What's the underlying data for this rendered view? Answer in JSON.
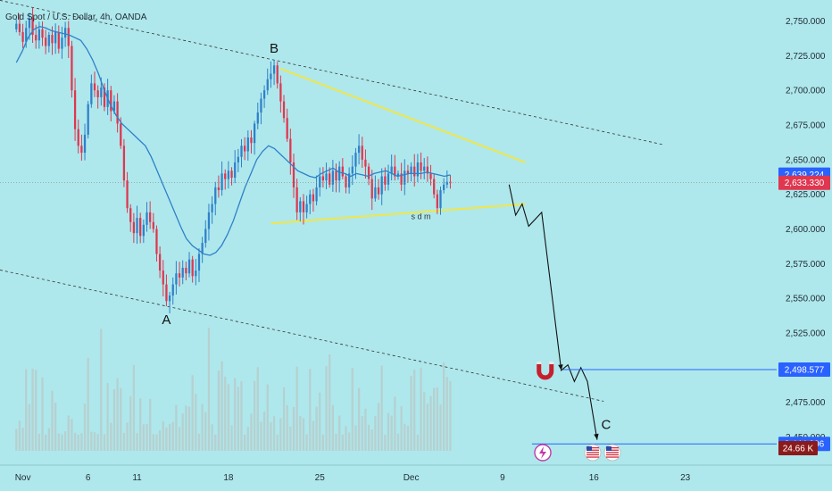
{
  "symbol_title": "Gold Spot / U.S. Dollar, 4h, OANDA",
  "colors": {
    "background": "#aee8ec",
    "up": "#2f80c9",
    "down": "#e0364f",
    "ma": "#2f80c9",
    "triangle": "#f1e64a",
    "blue_tag": "#2962ff",
    "red_tag": "#e0364f",
    "dark_tag": "#8b1a1a",
    "volume": "#b9c9c9"
  },
  "chart_data": {
    "type": "candlestick",
    "title": "Gold Spot / U.S. Dollar, 4h, OANDA",
    "ylim": [
      2440,
      2760
    ],
    "y_ticks": [
      2750,
      2725,
      2700,
      2675,
      2650,
      2625,
      2600,
      2575,
      2550,
      2525,
      2500,
      2475,
      2450
    ],
    "y_tick_labels": [
      "2,750.000",
      "2,725.000",
      "2,700.000",
      "2,675.000",
      "2,650.000",
      "2,625.000",
      "2,600.000",
      "2,575.000",
      "2,550.000",
      "2,525.000",
      "2,500.000",
      "2,475.000",
      "2,450.000"
    ],
    "x_ticks": [
      {
        "label": "Nov",
        "idx": 2
      },
      {
        "label": "6",
        "idx": 22
      },
      {
        "label": "11",
        "idx": 37
      },
      {
        "label": "18",
        "idx": 65
      },
      {
        "label": "25",
        "idx": 93
      },
      {
        "label": "Dec",
        "idx": 121
      },
      {
        "label": "9",
        "idx": 149
      },
      {
        "label": "16",
        "idx": 177
      },
      {
        "label": "23",
        "idx": 205
      }
    ],
    "x_range": [
      -5,
      233
    ],
    "closes": [
      2748,
      2742,
      2735,
      2745,
      2752,
      2740,
      2736,
      2744,
      2738,
      2732,
      2740,
      2734,
      2742,
      2730,
      2738,
      2745,
      2732,
      2700,
      2672,
      2660,
      2655,
      2668,
      2690,
      2705,
      2700,
      2695,
      2702,
      2688,
      2700,
      2685,
      2692,
      2676,
      2660,
      2635,
      2615,
      2605,
      2597,
      2608,
      2595,
      2603,
      2612,
      2605,
      2600,
      2582,
      2570,
      2560,
      2548,
      2552,
      2560,
      2568,
      2565,
      2572,
      2568,
      2578,
      2566,
      2570,
      2582,
      2590,
      2600,
      2612,
      2618,
      2630,
      2628,
      2640,
      2636,
      2642,
      2637,
      2648,
      2652,
      2660,
      2656,
      2666,
      2662,
      2676,
      2684,
      2694,
      2700,
      2708,
      2712,
      2718,
      2705,
      2692,
      2680,
      2665,
      2648,
      2630,
      2612,
      2620,
      2612,
      2618,
      2625,
      2620,
      2630,
      2638,
      2635,
      2640,
      2632,
      2642,
      2635,
      2645,
      2638,
      2630,
      2640,
      2645,
      2655,
      2660,
      2650,
      2645,
      2636,
      2622,
      2630,
      2625,
      2638,
      2632,
      2640,
      2645,
      2638,
      2640,
      2632,
      2642,
      2640,
      2645,
      2638,
      2648,
      2642,
      2645,
      2640,
      2636,
      2625,
      2615,
      2628,
      2632,
      2634,
      2633
    ],
    "series": [
      {
        "name": "MA",
        "values": [
          2720,
          2728,
          2738,
          2744,
          2746,
          2745,
          2743,
          2742,
          2741,
          2740,
          2738,
          2736,
          2730,
          2722,
          2712,
          2700,
          2690,
          2682,
          2676,
          2672,
          2668,
          2664,
          2660,
          2652,
          2642,
          2632,
          2622,
          2612,
          2602,
          2593,
          2588,
          2585,
          2582,
          2581,
          2583,
          2588,
          2596,
          2606,
          2618,
          2630,
          2640,
          2650,
          2656,
          2660,
          2658,
          2654,
          2650,
          2646,
          2642,
          2640,
          2638,
          2637,
          2640,
          2642,
          2644,
          2641,
          2640,
          2638,
          2640,
          2639,
          2638,
          2640,
          2641,
          2642,
          2640,
          2638,
          2639,
          2640,
          2640,
          2640,
          2641,
          2640,
          2639,
          2638,
          2639
        ]
      }
    ],
    "ma_start_idx": 0,
    "annotations": {
      "wave_A": "A",
      "wave_B": "B",
      "wave_C": "C",
      "pattern_note": "s d m"
    },
    "price_tags": [
      {
        "label": "2,639.224",
        "value": 2639.224,
        "color": "blue"
      },
      {
        "label": "2,633.330",
        "value": 2633.33,
        "color": "red"
      },
      {
        "label": "2,498.577",
        "value": 2498.577,
        "color": "blue"
      },
      {
        "label": "2,444.996",
        "value": 2444.996,
        "color": "blue"
      }
    ],
    "volume_tag": "24.66 K",
    "projection_path": [
      {
        "idx": 151,
        "value": 2632
      },
      {
        "idx": 153,
        "value": 2610
      },
      {
        "idx": 155,
        "value": 2618
      },
      {
        "idx": 157,
        "value": 2602
      },
      {
        "idx": 161,
        "value": 2612
      },
      {
        "idx": 167,
        "value": 2498
      },
      {
        "idx": 169,
        "value": 2502
      },
      {
        "idx": 171,
        "value": 2490
      },
      {
        "idx": 173,
        "value": 2500
      },
      {
        "idx": 175,
        "value": 2490
      },
      {
        "idx": 178,
        "value": 2448
      }
    ]
  }
}
